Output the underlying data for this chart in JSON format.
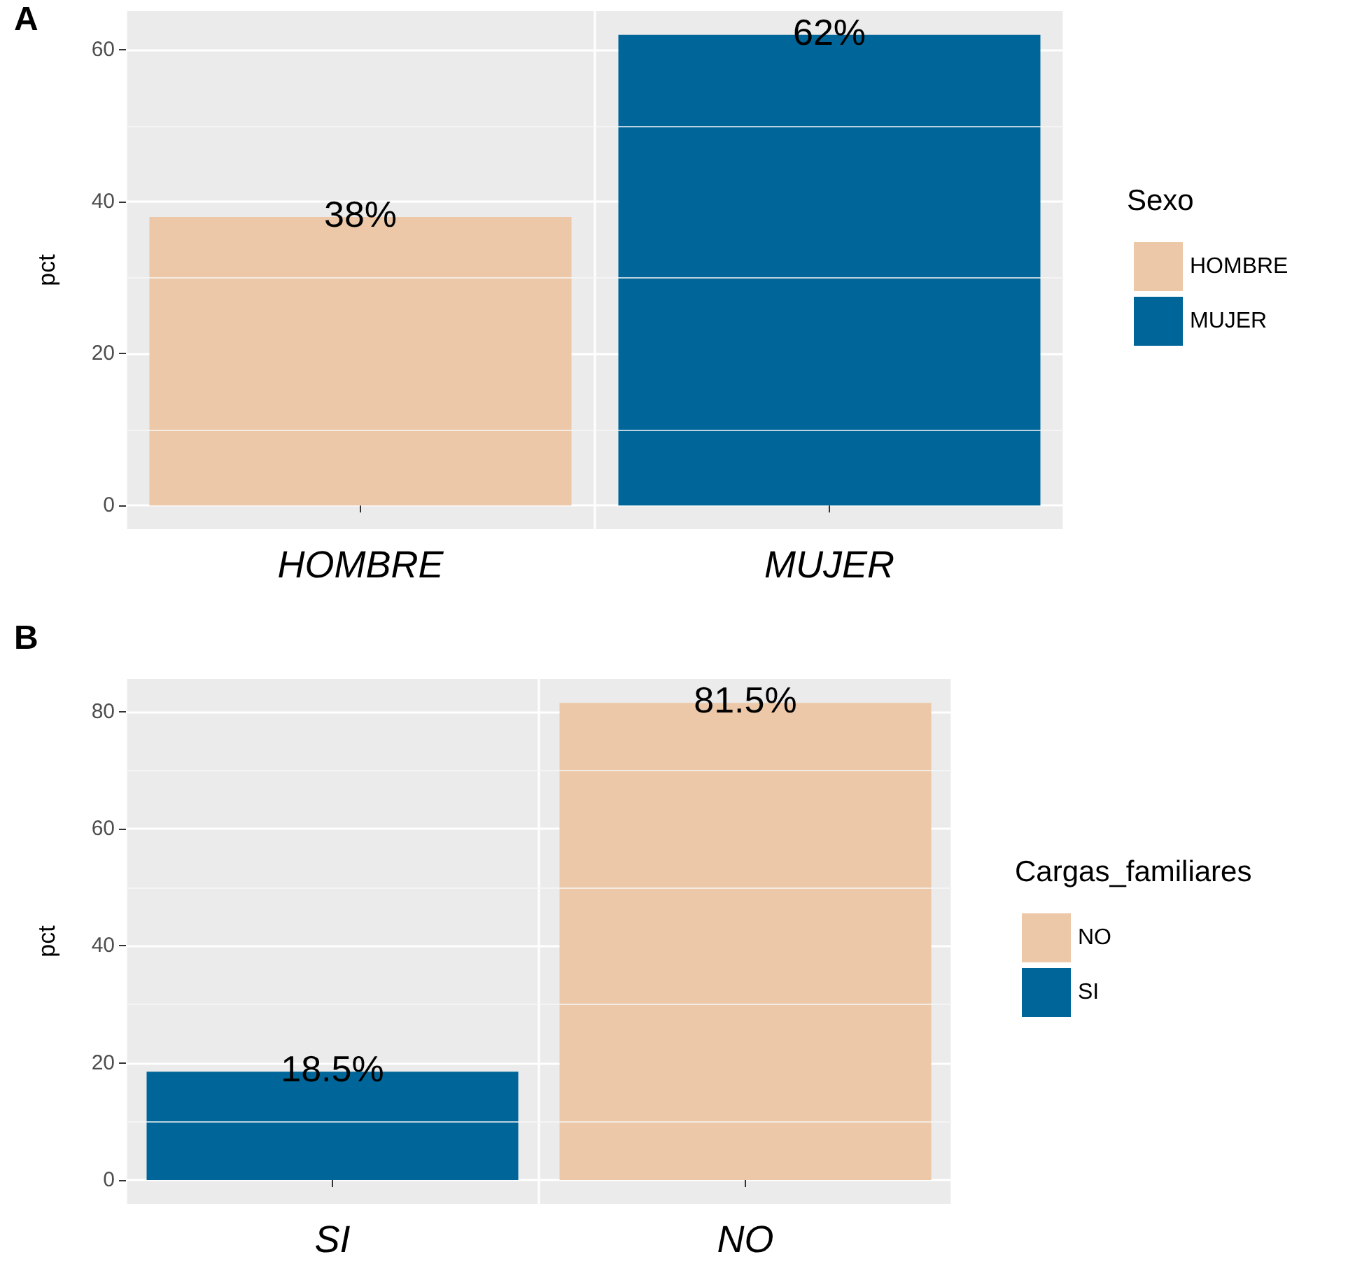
{
  "chart_data": [
    {
      "type": "bar",
      "title": "A",
      "ylabel": "pct",
      "categories": [
        "HOMBRE",
        "MUJER"
      ],
      "stacked": true,
      "ylim": [
        -3.1,
        65.1
      ],
      "yticks": [
        0,
        20,
        40,
        60
      ],
      "grid": true,
      "legend": "right",
      "legend_title": "Sexo",
      "series": [
        {
          "name": "HOMBRE",
          "color": "#ecc8a8",
          "values": [
            38,
            null
          ],
          "value_labels": [
            "38%",
            null
          ]
        },
        {
          "name": "MUJER",
          "color": "#006699",
          "values": [
            null,
            62
          ],
          "value_labels": [
            null,
            "62%"
          ]
        }
      ]
    },
    {
      "type": "bar",
      "title": "B",
      "ylabel": "pct",
      "categories": [
        "SI",
        "NO"
      ],
      "stacked": true,
      "ylim": [
        -4.075,
        85.6
      ],
      "yticks": [
        0,
        20,
        40,
        60,
        80
      ],
      "grid": true,
      "legend": "right",
      "legend_title": "Cargas_familiares",
      "series": [
        {
          "name": "NO",
          "color": "#ecc8a8",
          "values": [
            null,
            81.5
          ],
          "value_labels": [
            null,
            "81.5%"
          ]
        },
        {
          "name": "SI",
          "color": "#006699",
          "values": [
            18.5,
            null
          ],
          "value_labels": [
            "18.5%",
            null
          ]
        }
      ]
    }
  ]
}
